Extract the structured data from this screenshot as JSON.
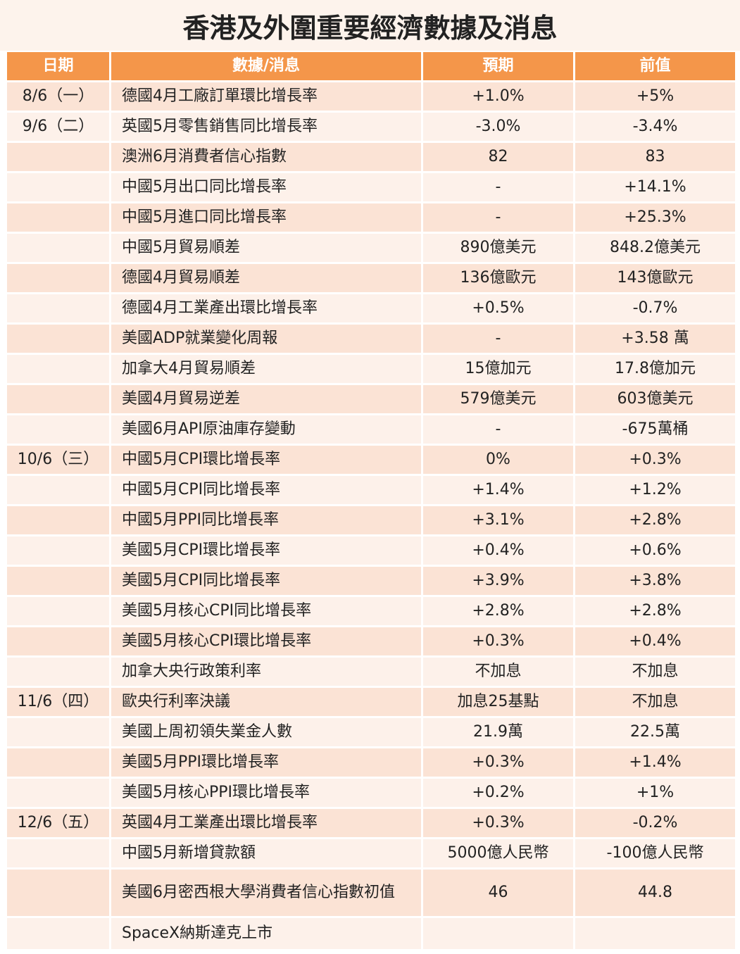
{
  "title": "香港及外圍重要經濟數據及消息",
  "table": {
    "header": [
      "日期",
      "數據/消息",
      "預期",
      "前值"
    ],
    "rows": [
      [
        "8/6（一）",
        "德國4月工廠訂單環比增長率",
        "+1.0%",
        "+5%"
      ],
      [
        "9/6（二）",
        "英國5月零售銷售同比增長率",
        "-3.0%",
        "-3.4%"
      ],
      [
        null,
        "澳洲6月消費者信心指數",
        "82",
        "83"
      ],
      [
        null,
        "中國5月出口同比增長率",
        "-",
        "+14.1%"
      ],
      [
        null,
        "中國5月進口同比增長率",
        "-",
        "+25.3%"
      ],
      [
        null,
        "中國5月貿易順差",
        "890億美元",
        "848.2億美元"
      ],
      [
        null,
        "德國4月貿易順差",
        "136億歐元",
        "143億歐元"
      ],
      [
        null,
        "德國4月工業產出環比增長率",
        "+0.5%",
        "-0.7%"
      ],
      [
        null,
        "美國ADP就業變化周報",
        "-",
        "+3.58 萬"
      ],
      [
        null,
        "加拿大4月貿易順差",
        "15億加元",
        "17.8億加元"
      ],
      [
        null,
        "美國4月貿易逆差",
        "579億美元",
        "603億美元"
      ],
      [
        null,
        "美國6月API原油庫存變動",
        "-",
        "-675萬桶"
      ],
      [
        "10/6（三）",
        "中國5月CPI環比增長率",
        "0%",
        "+0.3%"
      ],
      [
        null,
        "中國5月CPI同比增長率",
        "+1.4%",
        "+1.2%"
      ],
      [
        null,
        "中國5月PPI同比增長率",
        "+3.1%",
        "+2.8%"
      ],
      [
        null,
        "美國5月CPI環比增長率",
        "+0.4%",
        "+0.6%"
      ],
      [
        null,
        "美國5月CPI同比增長率",
        "+3.9%",
        "+3.8%"
      ],
      [
        null,
        "美國5月核心CPI同比增長率",
        "+2.8%",
        "+2.8%"
      ],
      [
        null,
        "美國5月核心CPI環比增長率",
        "+0.3%",
        "+0.4%"
      ],
      [
        null,
        "加拿大央行政策利率",
        "不加息",
        "不加息"
      ],
      [
        "11/6（四）",
        "歐央行利率決議",
        "加息25基點",
        "不加息"
      ],
      [
        null,
        "美國上周初領失業金人數",
        "21.9萬",
        "22.5萬"
      ],
      [
        null,
        "美國5月PPI環比增長率",
        "+0.3%",
        "+1.4%"
      ],
      [
        null,
        "美國5月核心PPI環比增長率",
        "+0.2%",
        "+1%"
      ],
      [
        "12/6（五）",
        "英國4月工業產出環比增長率",
        "+0.3%",
        "-0.2%"
      ],
      [
        null,
        "中國5月新增貸款額",
        "5000億人民幣",
        "-100億人民幣"
      ],
      [
        null,
        "美國6月密西根大學消費者信心指數初值",
        "46",
        "44.8"
      ],
      [
        null,
        "SpaceX納斯達克上市",
        null,
        null
      ]
    ]
  }
}
